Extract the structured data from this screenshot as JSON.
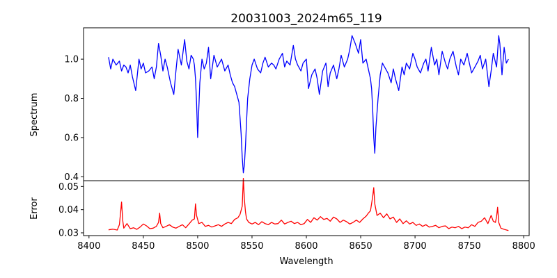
{
  "chart_data": [
    {
      "type": "line",
      "title": "20031003_2024m65_119",
      "ylabel": "Spectrum",
      "xlim": [
        8395,
        8805
      ],
      "ylim": [
        0.38,
        1.16
      ],
      "yticks": [
        0.4,
        0.6,
        0.8,
        1.0
      ],
      "ytick_labels": [
        "0.4",
        "0.6",
        "0.8",
        "1.0"
      ],
      "grid": false,
      "series": [
        {
          "color": "#0000ff",
          "x": [
            8418,
            8420,
            8422,
            8425,
            8428,
            8430,
            8432,
            8434,
            8436,
            8438,
            8440,
            8443,
            8446,
            8448,
            8450,
            8452,
            8455,
            8458,
            8460,
            8462,
            8464,
            8466,
            8468,
            8470,
            8472,
            8475,
            8478,
            8480,
            8482,
            8485,
            8488,
            8490,
            8492,
            8494,
            8496,
            8497,
            8498,
            8499,
            8500,
            8502,
            8504,
            8506,
            8508,
            8510,
            8512,
            8515,
            8518,
            8520,
            8522,
            8525,
            8528,
            8530,
            8532,
            8534,
            8536,
            8538,
            8539,
            8540,
            8541,
            8542,
            8543,
            8544,
            8545,
            8546,
            8548,
            8550,
            8552,
            8555,
            8558,
            8560,
            8562,
            8565,
            8568,
            8570,
            8572,
            8575,
            8578,
            8580,
            8582,
            8585,
            8588,
            8590,
            8592,
            8595,
            8597,
            8600,
            8602,
            8605,
            8608,
            8610,
            8612,
            8615,
            8618,
            8620,
            8622,
            8625,
            8628,
            8630,
            8632,
            8635,
            8638,
            8640,
            8642,
            8645,
            8648,
            8650,
            8652,
            8655,
            8657,
            8659,
            8660,
            8661,
            8662,
            8663,
            8664,
            8666,
            8668,
            8670,
            8672,
            8675,
            8678,
            8680,
            8682,
            8685,
            8688,
            8690,
            8692,
            8695,
            8698,
            8700,
            8702,
            8705,
            8708,
            8710,
            8712,
            8715,
            8718,
            8720,
            8722,
            8725,
            8728,
            8730,
            8732,
            8735,
            8738,
            8740,
            8742,
            8745,
            8748,
            8750,
            8752,
            8755,
            8758,
            8760,
            8762,
            8765,
            8768,
            8770,
            8772,
            8775,
            8777,
            8778,
            8780,
            8782,
            8784,
            8786
          ],
          "y": [
            1.01,
            0.95,
            1.0,
            0.97,
            0.99,
            0.94,
            0.97,
            0.96,
            0.93,
            0.97,
            0.91,
            0.84,
            1.0,
            0.95,
            0.98,
            0.93,
            0.94,
            0.96,
            0.9,
            0.96,
            1.08,
            1.02,
            0.94,
            1.0,
            0.96,
            0.88,
            0.82,
            0.94,
            1.05,
            0.97,
            1.1,
            0.99,
            0.95,
            1.02,
            1.0,
            0.97,
            0.9,
            0.78,
            0.6,
            0.88,
            1.0,
            0.95,
            0.98,
            1.06,
            0.9,
            1.02,
            0.96,
            0.98,
            1.0,
            0.94,
            0.97,
            0.92,
            0.88,
            0.86,
            0.82,
            0.78,
            0.7,
            0.62,
            0.5,
            0.42,
            0.46,
            0.56,
            0.68,
            0.8,
            0.9,
            0.97,
            1.0,
            0.95,
            0.93,
            0.98,
            1.01,
            0.96,
            0.98,
            0.97,
            0.95,
            1.0,
            1.03,
            0.96,
            0.99,
            0.97,
            1.07,
            1.0,
            0.97,
            0.94,
            0.98,
            1.0,
            0.85,
            0.92,
            0.95,
            0.9,
            0.82,
            0.94,
            0.98,
            0.86,
            0.93,
            0.97,
            0.9,
            0.95,
            1.02,
            0.96,
            1.0,
            1.05,
            1.12,
            1.08,
            1.03,
            1.1,
            0.98,
            1.0,
            0.95,
            0.9,
            0.85,
            0.75,
            0.6,
            0.52,
            0.65,
            0.8,
            0.92,
            0.98,
            0.96,
            0.93,
            0.88,
            0.95,
            0.9,
            0.84,
            0.96,
            0.92,
            0.98,
            0.95,
            1.03,
            1.0,
            0.96,
            0.93,
            0.98,
            1.0,
            0.94,
            1.06,
            0.97,
            1.0,
            0.92,
            1.04,
            0.98,
            0.95,
            1.0,
            1.04,
            0.96,
            0.92,
            1.0,
            0.97,
            1.03,
            0.98,
            0.93,
            0.96,
            0.99,
            1.02,
            0.95,
            1.0,
            0.86,
            0.94,
            1.03,
            0.96,
            1.12,
            1.08,
            0.92,
            1.06,
            0.98,
            1.0
          ]
        }
      ]
    },
    {
      "type": "line",
      "xlabel": "Wavelength",
      "ylabel": "Error",
      "xlim": [
        8395,
        8805
      ],
      "ylim": [
        0.0288,
        0.0525
      ],
      "xticks": [
        8400,
        8450,
        8500,
        8550,
        8600,
        8650,
        8700,
        8750,
        8800
      ],
      "xtick_labels": [
        "8400",
        "8450",
        "8500",
        "8550",
        "8600",
        "8650",
        "8700",
        "8750",
        "8800"
      ],
      "yticks": [
        0.03,
        0.04,
        0.05
      ],
      "ytick_labels": [
        "0.03",
        "0.04",
        "0.05"
      ],
      "grid": false,
      "series": [
        {
          "color": "#ff0000",
          "x": [
            8418,
            8422,
            8426,
            8428,
            8429,
            8430,
            8431,
            8432,
            8435,
            8438,
            8441,
            8444,
            8447,
            8450,
            8453,
            8456,
            8459,
            8462,
            8464,
            8465,
            8466,
            8468,
            8471,
            8474,
            8477,
            8480,
            8483,
            8486,
            8489,
            8492,
            8495,
            8497,
            8498,
            8499,
            8501,
            8504,
            8507,
            8510,
            8513,
            8516,
            8519,
            8522,
            8525,
            8528,
            8531,
            8534,
            8537,
            8539,
            8541,
            8542,
            8543,
            8544,
            8545,
            8547,
            8550,
            8553,
            8556,
            8559,
            8562,
            8565,
            8568,
            8571,
            8574,
            8577,
            8580,
            8583,
            8586,
            8589,
            8592,
            8595,
            8598,
            8601,
            8604,
            8607,
            8610,
            8613,
            8616,
            8619,
            8622,
            8625,
            8628,
            8631,
            8634,
            8637,
            8640,
            8643,
            8646,
            8649,
            8652,
            8655,
            8657,
            8659,
            8661,
            8662,
            8663,
            8665,
            8668,
            8671,
            8674,
            8677,
            8680,
            8683,
            8686,
            8689,
            8692,
            8695,
            8698,
            8701,
            8704,
            8707,
            8710,
            8713,
            8716,
            8719,
            8722,
            8725,
            8728,
            8731,
            8734,
            8737,
            8740,
            8743,
            8746,
            8749,
            8752,
            8755,
            8758,
            8761,
            8764,
            8767,
            8770,
            8772,
            8774,
            8775,
            8776,
            8777,
            8779,
            8782,
            8786
          ],
          "y": [
            0.0313,
            0.0316,
            0.0312,
            0.0335,
            0.0385,
            0.0433,
            0.0355,
            0.032,
            0.034,
            0.0318,
            0.0322,
            0.0315,
            0.0325,
            0.0338,
            0.033,
            0.0318,
            0.032,
            0.0328,
            0.0345,
            0.0385,
            0.034,
            0.0322,
            0.0328,
            0.0335,
            0.0325,
            0.032,
            0.0328,
            0.0335,
            0.0322,
            0.0338,
            0.0355,
            0.036,
            0.0425,
            0.0375,
            0.034,
            0.0345,
            0.0328,
            0.0332,
            0.0325,
            0.033,
            0.0335,
            0.0328,
            0.0338,
            0.0345,
            0.034,
            0.0358,
            0.0365,
            0.038,
            0.0415,
            0.0535,
            0.0445,
            0.039,
            0.036,
            0.0345,
            0.0338,
            0.0345,
            0.0335,
            0.0348,
            0.034,
            0.0335,
            0.0345,
            0.0338,
            0.034,
            0.0355,
            0.0338,
            0.0345,
            0.035,
            0.034,
            0.0345,
            0.0335,
            0.034,
            0.0358,
            0.0345,
            0.0365,
            0.0355,
            0.037,
            0.0358,
            0.0362,
            0.035,
            0.0368,
            0.036,
            0.0345,
            0.0355,
            0.0348,
            0.0338,
            0.0345,
            0.0355,
            0.0345,
            0.036,
            0.0372,
            0.0385,
            0.0395,
            0.0455,
            0.0495,
            0.0425,
            0.0375,
            0.0385,
            0.0365,
            0.0382,
            0.036,
            0.0368,
            0.0345,
            0.036,
            0.034,
            0.0352,
            0.0338,
            0.0345,
            0.0332,
            0.0338,
            0.0328,
            0.0335,
            0.0325,
            0.0328,
            0.0332,
            0.0322,
            0.0328,
            0.033,
            0.0318,
            0.0325,
            0.0322,
            0.0328,
            0.0318,
            0.0325,
            0.0322,
            0.0335,
            0.0328,
            0.0345,
            0.035,
            0.0365,
            0.034,
            0.0375,
            0.035,
            0.0345,
            0.037,
            0.041,
            0.0345,
            0.032,
            0.0315,
            0.031
          ]
        }
      ]
    }
  ]
}
